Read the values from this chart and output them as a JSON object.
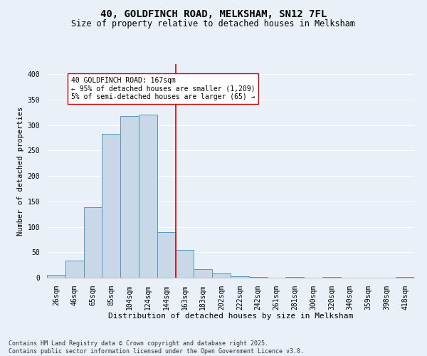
{
  "title1": "40, GOLDFINCH ROAD, MELKSHAM, SN12 7FL",
  "title2": "Size of property relative to detached houses in Melksham",
  "xlabel": "Distribution of detached houses by size in Melksham",
  "ylabel": "Number of detached properties",
  "categories": [
    "26sqm",
    "46sqm",
    "65sqm",
    "85sqm",
    "104sqm",
    "124sqm",
    "144sqm",
    "163sqm",
    "183sqm",
    "202sqm",
    "222sqm",
    "242sqm",
    "261sqm",
    "281sqm",
    "300sqm",
    "320sqm",
    "340sqm",
    "359sqm",
    "398sqm",
    "418sqm"
  ],
  "values": [
    5,
    33,
    138,
    283,
    318,
    320,
    90,
    55,
    17,
    9,
    3,
    1,
    0,
    1,
    0,
    1,
    0,
    0,
    0,
    1
  ],
  "bar_color": "#c8d8e8",
  "bar_edge_color": "#5599bb",
  "vline_color": "#cc0000",
  "annotation_text": "40 GOLDFINCH ROAD: 167sqm\n← 95% of detached houses are smaller (1,209)\n5% of semi-detached houses are larger (65) →",
  "annotation_box_facecolor": "#ffffff",
  "annotation_box_edgecolor": "#cc0000",
  "ylim": [
    0,
    420
  ],
  "yticks": [
    0,
    50,
    100,
    150,
    200,
    250,
    300,
    350,
    400
  ],
  "background_color": "#eaf0f8",
  "grid_color": "#ffffff",
  "footnote": "Contains HM Land Registry data © Crown copyright and database right 2025.\nContains public sector information licensed under the Open Government Licence v3.0.",
  "title1_fontsize": 10,
  "title2_fontsize": 8.5,
  "xlabel_fontsize": 8,
  "ylabel_fontsize": 7.5,
  "tick_fontsize": 7,
  "annotation_fontsize": 7,
  "footnote_fontsize": 6
}
